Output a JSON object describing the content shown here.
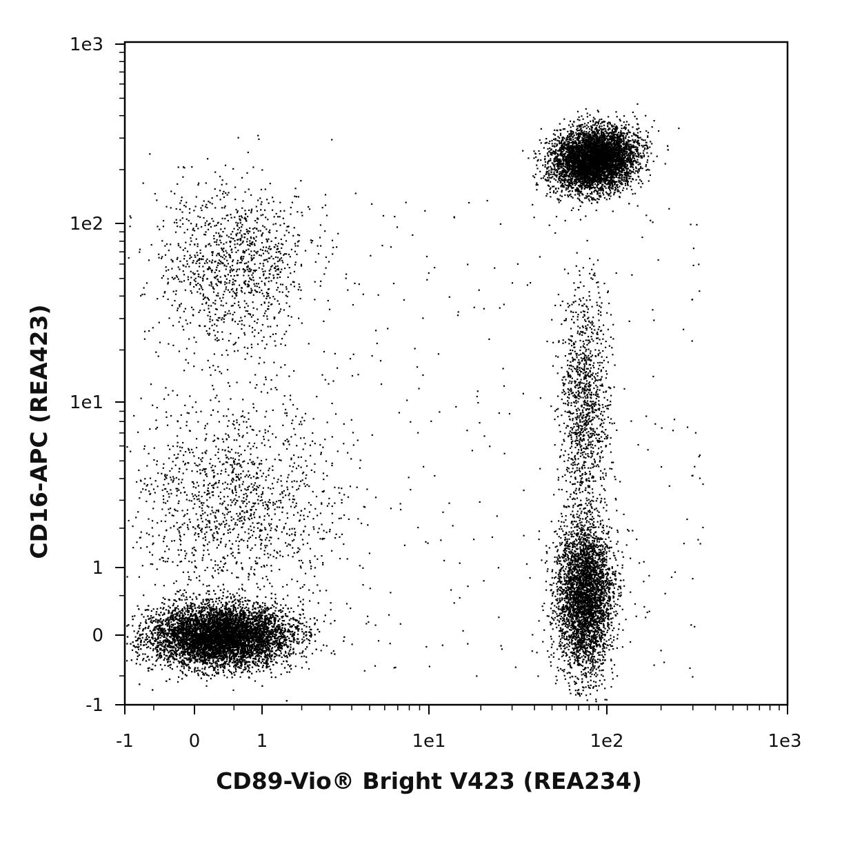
{
  "chart_data": {
    "type": "scatter",
    "xlabel": "CD89-Vio® Bright V423 (REA234)",
    "ylabel": "CD16-APC (REA423)",
    "x_scale": "biexponential",
    "y_scale": "biexponential",
    "xlim": [
      -1,
      1000
    ],
    "ylim": [
      -1,
      1000
    ],
    "x_ticks": [
      {
        "label": "-1",
        "value": -1
      },
      {
        "label": "0",
        "value": 0
      },
      {
        "label": "1",
        "value": 1
      },
      {
        "label": "1e1",
        "value": 10
      },
      {
        "label": "1e2",
        "value": 100
      },
      {
        "label": "1e3",
        "value": 1000
      }
    ],
    "y_ticks": [
      {
        "label": "1e3",
        "value": 1000
      },
      {
        "label": "1e2",
        "value": 100
      },
      {
        "label": "1e1",
        "value": 10
      },
      {
        "label": "1",
        "value": 1
      },
      {
        "label": "0",
        "value": 0
      },
      {
        "label": "-1",
        "value": -1
      }
    ],
    "grid": false,
    "marker_color": "#000000",
    "populations": [
      {
        "name": "CD89- CD16- dense cluster",
        "x_center": 0.3,
        "y_center": 0.0,
        "relative_count": 0.42
      },
      {
        "name": "CD89- CD16+ sparse cluster",
        "x_center": 0.5,
        "y_center": 60,
        "relative_count": 0.05
      },
      {
        "name": "CD89- scattered mid band",
        "x_center": 0.5,
        "y_center": 3,
        "relative_count": 0.06
      },
      {
        "name": "CD89+ CD16+ dense cluster",
        "x_center": 85,
        "y_center": 230,
        "relative_count": 0.25
      },
      {
        "name": "CD89+ CD16- cluster",
        "x_center": 75,
        "y_center": 0.5,
        "relative_count": 0.17
      },
      {
        "name": "CD89+ CD16 low streak",
        "x_center": 75,
        "y_center": 10,
        "relative_count": 0.05
      }
    ]
  }
}
